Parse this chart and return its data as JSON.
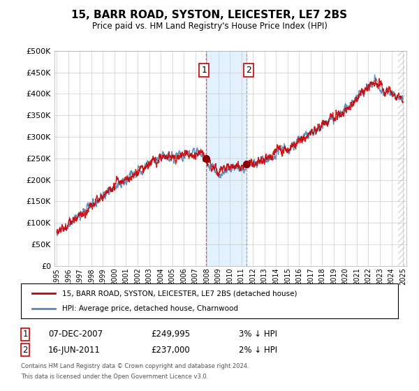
{
  "title": "15, BARR ROAD, SYSTON, LEICESTER, LE7 2BS",
  "subtitle": "Price paid vs. HM Land Registry's House Price Index (HPI)",
  "legend_line1": "15, BARR ROAD, SYSTON, LEICESTER, LE7 2BS (detached house)",
  "legend_line2": "HPI: Average price, detached house, Charnwood",
  "annotation1": {
    "label": "1",
    "date": "07-DEC-2007",
    "price": "£249,995",
    "note": "3% ↓ HPI"
  },
  "annotation2": {
    "label": "2",
    "date": "16-JUN-2011",
    "price": "£237,000",
    "note": "2% ↓ HPI"
  },
  "footer": "Contains HM Land Registry data © Crown copyright and database right 2024.\nThis data is licensed under the Open Government Licence v3.0.",
  "red_line_color": "#cc0000",
  "blue_line_color": "#5588bb",
  "background_color": "#ffffff",
  "grid_color": "#cccccc",
  "highlight_color": "#ddeeff",
  "ylim": [
    0,
    500000
  ],
  "yticks": [
    0,
    50000,
    100000,
    150000,
    200000,
    250000,
    300000,
    350000,
    400000,
    450000,
    500000
  ],
  "year_start": 1995,
  "year_end": 2025,
  "purchase1_year": 2007.92,
  "purchase2_year": 2011.46,
  "p1_price": 249995,
  "p2_price": 237000
}
